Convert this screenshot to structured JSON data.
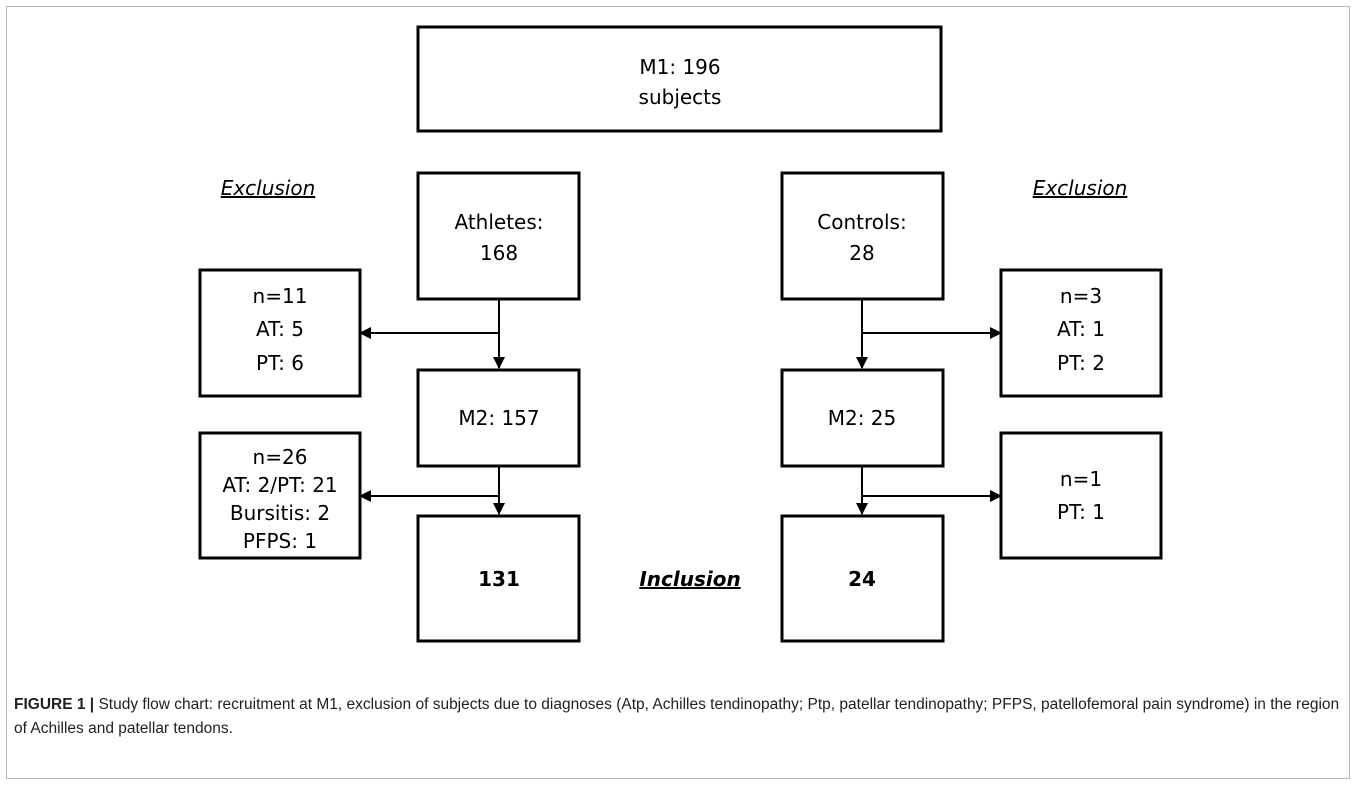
{
  "nodes": {
    "m1": [
      "M1: 196",
      "subjects"
    ],
    "athletes": [
      "Athletes:",
      "168"
    ],
    "controls": [
      "Controls:",
      "28"
    ],
    "ath_excl1": [
      "n=11",
      "AT: 5",
      "PT: 6"
    ],
    "ctl_excl1": [
      "n=3",
      "AT: 1",
      "PT: 2"
    ],
    "ath_m2": [
      "M2: 157"
    ],
    "ctl_m2": [
      "M2: 25"
    ],
    "ath_excl2": [
      "n=26",
      "AT: 2/PT: 21",
      "Bursitis: 2",
      "PFPS: 1"
    ],
    "ctl_excl2": [
      "n=1",
      "PT: 1"
    ],
    "ath_final": [
      "131"
    ],
    "ctl_final": [
      "24"
    ]
  },
  "labels": {
    "exclusion_left": "Exclusion",
    "exclusion_right": "Exclusion",
    "inclusion": "Inclusion"
  },
  "caption": {
    "figure_label": "FIGURE 1 |",
    "text": " Study flow chart: recruitment at M1, exclusion of subjects due to diagnoses (Atp, Achilles tendinopathy; Ptp, patellar tendinopathy; PFPS, patellofemoral pain syndrome) in the region of Achilles and patellar tendons."
  }
}
